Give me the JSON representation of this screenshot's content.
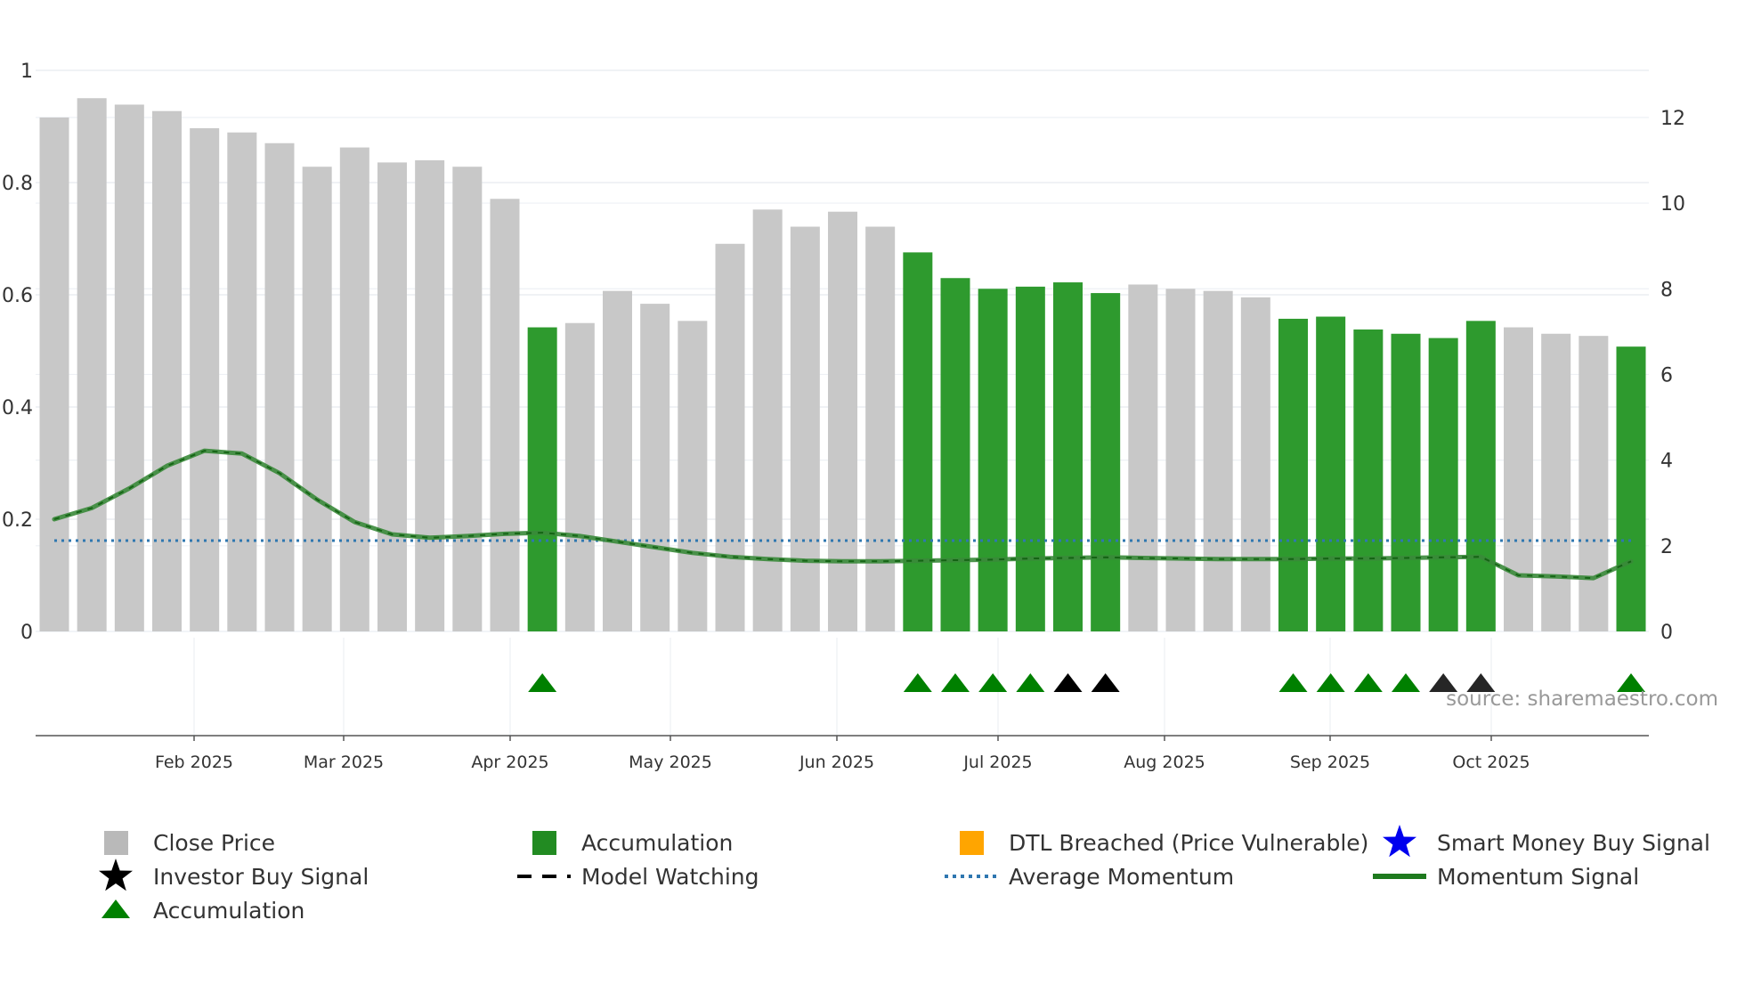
{
  "chart_data": {
    "type": "bar",
    "title": "",
    "left_axis": {
      "ticks": [
        "0",
        "0.2",
        "0.4",
        "0.6",
        "0.8",
        "1"
      ],
      "ylim": [
        0,
        1
      ]
    },
    "right_axis": {
      "ticks": [
        "0",
        "2",
        "4",
        "6",
        "8",
        "10",
        "12"
      ],
      "ylim": [
        0,
        13.1
      ]
    },
    "x_tick_labels": [
      "Feb 2025",
      "Mar 2025",
      "Apr 2025",
      "May 2025",
      "Jun 2025",
      "Jul 2025",
      "Aug 2025",
      "Sep 2025",
      "Oct 2025"
    ],
    "colors": {
      "close_price": "#c8c8c8",
      "accumulation": "#2e9a2e",
      "dtl_breached": "#ffa500",
      "smart_money": "#0000ee",
      "investor_buy": "#000000",
      "average_momentum": "#2f77b0",
      "momentum_line": "#3a8a3a",
      "triangle_green": "#008000",
      "triangle_black": "#000000"
    },
    "series": [
      {
        "name": "Close Price",
        "axis": "right",
        "values": [
          12.0,
          12.45,
          12.3,
          12.15,
          11.75,
          11.65,
          11.4,
          10.85,
          11.3,
          10.95,
          11.0,
          10.85,
          10.1,
          7.1,
          7.2,
          7.95,
          7.65,
          7.25,
          9.05,
          9.85,
          9.45,
          9.8,
          9.45,
          8.85,
          8.25,
          8.0,
          8.05,
          8.15,
          7.9,
          8.1,
          8.0,
          7.95,
          7.8,
          7.3,
          7.35,
          7.05,
          6.95,
          6.85,
          7.25,
          7.1,
          6.95,
          6.9,
          6.65
        ],
        "accumulation_flags": [
          0,
          0,
          0,
          0,
          0,
          0,
          0,
          0,
          0,
          0,
          0,
          0,
          0,
          1,
          0,
          0,
          0,
          0,
          0,
          0,
          0,
          0,
          0,
          1,
          1,
          1,
          1,
          1,
          1,
          0,
          0,
          0,
          0,
          1,
          1,
          1,
          1,
          1,
          1,
          0,
          0,
          0,
          1
        ]
      },
      {
        "name": "Momentum Signal",
        "axis": "left",
        "values": [
          0.2,
          0.22,
          0.255,
          0.295,
          0.322,
          0.317,
          0.282,
          0.235,
          0.195,
          0.173,
          0.167,
          0.17,
          0.174,
          0.176,
          0.17,
          0.16,
          0.15,
          0.14,
          0.133,
          0.129,
          0.126,
          0.125,
          0.125,
          0.126,
          0.127,
          0.128,
          0.13,
          0.131,
          0.132,
          0.131,
          0.13,
          0.129,
          0.129,
          0.129,
          0.13,
          0.13,
          0.131,
          0.132,
          0.133,
          0.1,
          0.098,
          0.095,
          0.125
        ]
      },
      {
        "name": "Average Momentum",
        "axis": "left",
        "value": 0.162
      }
    ],
    "signal_triangles": [
      {
        "index": 13,
        "color": "green"
      },
      {
        "index": 23,
        "color": "green"
      },
      {
        "index": 24,
        "color": "green"
      },
      {
        "index": 25,
        "color": "green"
      },
      {
        "index": 26,
        "color": "green"
      },
      {
        "index": 27,
        "color": "black"
      },
      {
        "index": 28,
        "color": "black"
      },
      {
        "index": 33,
        "color": "green"
      },
      {
        "index": 34,
        "color": "green"
      },
      {
        "index": 35,
        "color": "green"
      },
      {
        "index": 36,
        "color": "green"
      },
      {
        "index": 37,
        "color": "black"
      },
      {
        "index": 38,
        "color": "black"
      },
      {
        "index": 42,
        "color": "green"
      }
    ],
    "source": "source: sharemaestro.com",
    "legend": [
      {
        "label": "Close Price",
        "symbol": "square",
        "color": "#b9b9b9"
      },
      {
        "label": "Accumulation",
        "symbol": "square",
        "color": "#228b22"
      },
      {
        "label": "DTL Breached (Price Vulnerable)",
        "symbol": "square",
        "color": "#ffa500"
      },
      {
        "label": "Smart Money Buy Signal",
        "symbol": "star",
        "color": "#0000ee"
      },
      {
        "label": "Investor Buy Signal",
        "symbol": "star",
        "color": "#000000"
      },
      {
        "label": "Model Watching",
        "symbol": "dash",
        "color": "#000000"
      },
      {
        "label": "Average Momentum",
        "symbol": "dot",
        "color": "#2f77b0"
      },
      {
        "label": "Momentum Signal",
        "symbol": "line",
        "color": "#1e7a1e"
      },
      {
        "label": "Accumulation",
        "symbol": "triangle",
        "color": "#008000"
      }
    ]
  }
}
